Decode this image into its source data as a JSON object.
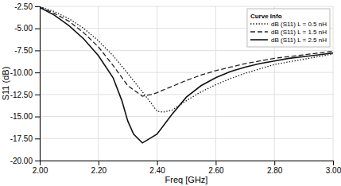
{
  "chart_data": {
    "type": "line",
    "xlabel": "Freq [GHz]",
    "ylabel": "S11 (dB)",
    "xlim": [
      2.0,
      3.0
    ],
    "ylim": [
      -20.0,
      -2.5
    ],
    "xticks": [
      {
        "value": 2.0,
        "label": "2.00"
      },
      {
        "value": 2.2,
        "label": "2.20"
      },
      {
        "value": 2.4,
        "label": "2.40"
      },
      {
        "value": 2.6,
        "label": "2.60"
      },
      {
        "value": 2.8,
        "label": "2.80"
      },
      {
        "value": 3.0,
        "label": "3.00"
      }
    ],
    "yticks": [
      {
        "value": -20.0,
        "label": "-20.00"
      },
      {
        "value": -17.5,
        "label": "-17.50"
      },
      {
        "value": -15.0,
        "label": "-15.00"
      },
      {
        "value": -12.5,
        "label": "-12.50"
      },
      {
        "value": -10.0,
        "label": "-10.00"
      },
      {
        "value": -7.5,
        "label": "-7.50"
      },
      {
        "value": -5.0,
        "label": "-5.00"
      },
      {
        "value": -2.5,
        "label": "-2.50"
      }
    ],
    "grid": true,
    "legend": "upper right",
    "legend_title": "Curve Info",
    "series": [
      {
        "name": "dB (S11) L = 0.5 nH",
        "color": "#222222",
        "line_style": "dotted",
        "x": [
          2.0,
          2.05,
          2.1,
          2.15,
          2.2,
          2.25,
          2.3,
          2.35,
          2.38,
          2.4,
          2.42,
          2.45,
          2.5,
          2.55,
          2.6,
          2.65,
          2.7,
          2.75,
          2.8,
          2.85,
          2.9,
          2.95,
          3.0
        ],
        "values": [
          -2.52,
          -3.1,
          -3.9,
          -5.0,
          -6.4,
          -8.1,
          -10.1,
          -12.2,
          -13.5,
          -14.4,
          -14.5,
          -14.3,
          -13.2,
          -12.2,
          -11.4,
          -10.7,
          -10.1,
          -9.6,
          -9.1,
          -8.8,
          -8.5,
          -8.2,
          -7.9
        ]
      },
      {
        "name": "dB (S11) L = 1.5 nH",
        "color": "#222222",
        "line_style": "dashed",
        "x": [
          2.0,
          2.05,
          2.1,
          2.15,
          2.2,
          2.25,
          2.3,
          2.35,
          2.38,
          2.4,
          2.42,
          2.45,
          2.5,
          2.55,
          2.6,
          2.65,
          2.7,
          2.75,
          2.8,
          2.85,
          2.9,
          2.95,
          3.0
        ],
        "values": [
          -2.58,
          -3.3,
          -4.2,
          -5.5,
          -7.1,
          -9.2,
          -11.5,
          -12.7,
          -12.5,
          -12.3,
          -12.0,
          -11.6,
          -10.9,
          -10.3,
          -9.8,
          -9.4,
          -9.0,
          -8.7,
          -8.4,
          -8.2,
          -8.0,
          -7.8,
          -7.6
        ]
      },
      {
        "name": "dB (S11) L = 2.5 nH",
        "color": "#111111",
        "line_style": "solid",
        "x": [
          2.0,
          2.05,
          2.1,
          2.15,
          2.2,
          2.25,
          2.28,
          2.3,
          2.32,
          2.35,
          2.4,
          2.45,
          2.5,
          2.55,
          2.6,
          2.65,
          2.7,
          2.75,
          2.8,
          2.85,
          2.9,
          2.95,
          3.0
        ],
        "values": [
          -2.63,
          -3.5,
          -4.7,
          -6.2,
          -8.1,
          -10.6,
          -13.2,
          -15.5,
          -17.0,
          -18.0,
          -17.0,
          -14.8,
          -12.8,
          -11.5,
          -10.6,
          -9.9,
          -9.4,
          -9.0,
          -8.7,
          -8.4,
          -8.2,
          -8.0,
          -7.8
        ]
      }
    ]
  }
}
